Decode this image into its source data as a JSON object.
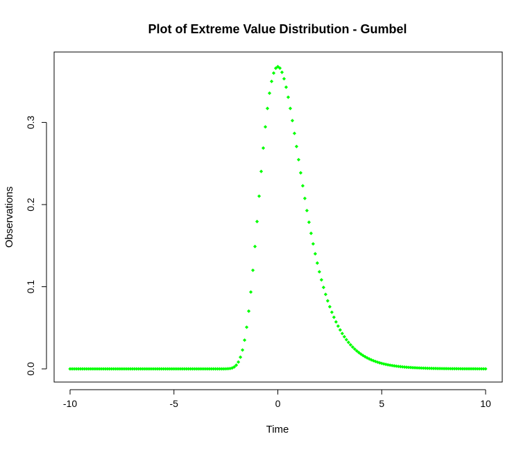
{
  "chart_data": {
    "type": "scatter",
    "title": "Plot of Extreme Value Distribution - Gumbel",
    "xlabel": "Time",
    "ylabel": "Observations",
    "xlim": [
      -10,
      10
    ],
    "ylim": [
      0,
      0.368
    ],
    "x_ticks": [
      -10,
      -5,
      0,
      5,
      10
    ],
    "x_tick_labels": [
      "-10",
      "-5",
      "0",
      "5",
      "10"
    ],
    "y_ticks": [
      0.0,
      0.1,
      0.2,
      0.3
    ],
    "y_tick_labels": [
      "0.0",
      "0.1",
      "0.2",
      "0.3"
    ],
    "grid": false,
    "marker_color": "#00ff00",
    "series": [
      {
        "x_range": [
          -10,
          10
        ],
        "n_points": 201,
        "function": "gumbel_density exp(-x - exp(-x)), location 0, scale 1"
      }
    ]
  }
}
